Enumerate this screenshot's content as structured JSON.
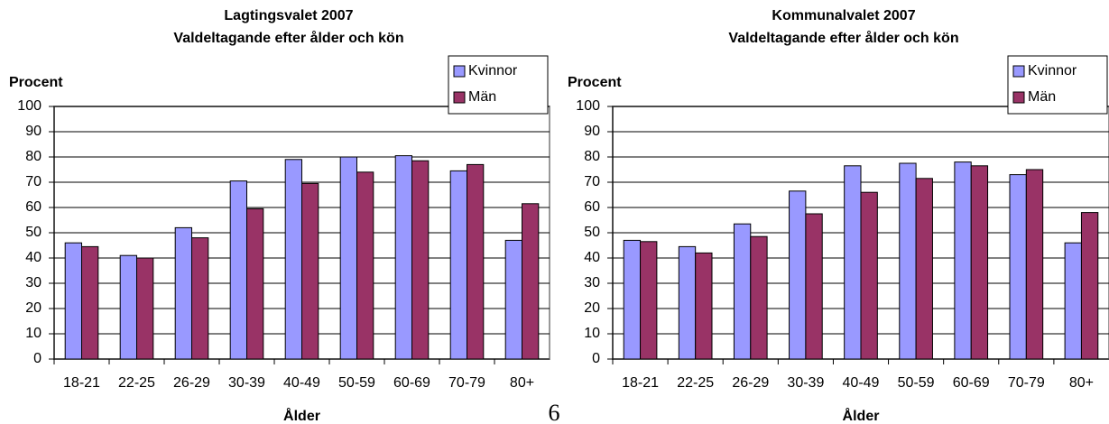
{
  "chart_data": [
    {
      "type": "bar",
      "title": "Lagtingsvalet 2007",
      "subtitle": "Valdeltagande efter ålder och kön",
      "ylabel": "Procent",
      "xlabel": "Ålder",
      "categories": [
        "18-21",
        "22-25",
        "26-29",
        "30-39",
        "40-49",
        "50-59",
        "60-69",
        "70-79",
        "80+"
      ],
      "series": [
        {
          "name": "Kvinnor",
          "color": "#9999ff",
          "values": [
            46,
            41,
            52,
            70.5,
            79,
            80,
            80.5,
            74.5,
            47
          ]
        },
        {
          "name": "Män",
          "color": "#993366",
          "values": [
            44.5,
            40,
            48,
            59.5,
            69.5,
            74,
            78.5,
            77,
            61.5
          ]
        }
      ],
      "ylim": [
        0,
        100
      ],
      "yticks": [
        0,
        10,
        20,
        30,
        40,
        50,
        60,
        70,
        80,
        90,
        100
      ],
      "grid": true,
      "legend": "upper right"
    },
    {
      "type": "bar",
      "title": "Kommunalvalet 2007",
      "subtitle": "Valdeltagande efter ålder och kön",
      "ylabel": "Procent",
      "xlabel": "Ålder",
      "categories": [
        "18-21",
        "22-25",
        "26-29",
        "30-39",
        "40-49",
        "50-59",
        "60-69",
        "70-79",
        "80+"
      ],
      "series": [
        {
          "name": "Kvinnor",
          "color": "#9999ff",
          "values": [
            47,
            44.5,
            53.5,
            66.5,
            76.5,
            77.5,
            78,
            73,
            46
          ]
        },
        {
          "name": "Män",
          "color": "#993366",
          "values": [
            46.5,
            42,
            48.5,
            57.5,
            66,
            71.5,
            76.5,
            75,
            58
          ]
        }
      ],
      "ylim": [
        0,
        100
      ],
      "yticks": [
        0,
        10,
        20,
        30,
        40,
        50,
        60,
        70,
        80,
        90,
        100
      ],
      "grid": true,
      "legend": "upper right"
    }
  ],
  "page_number": "6"
}
